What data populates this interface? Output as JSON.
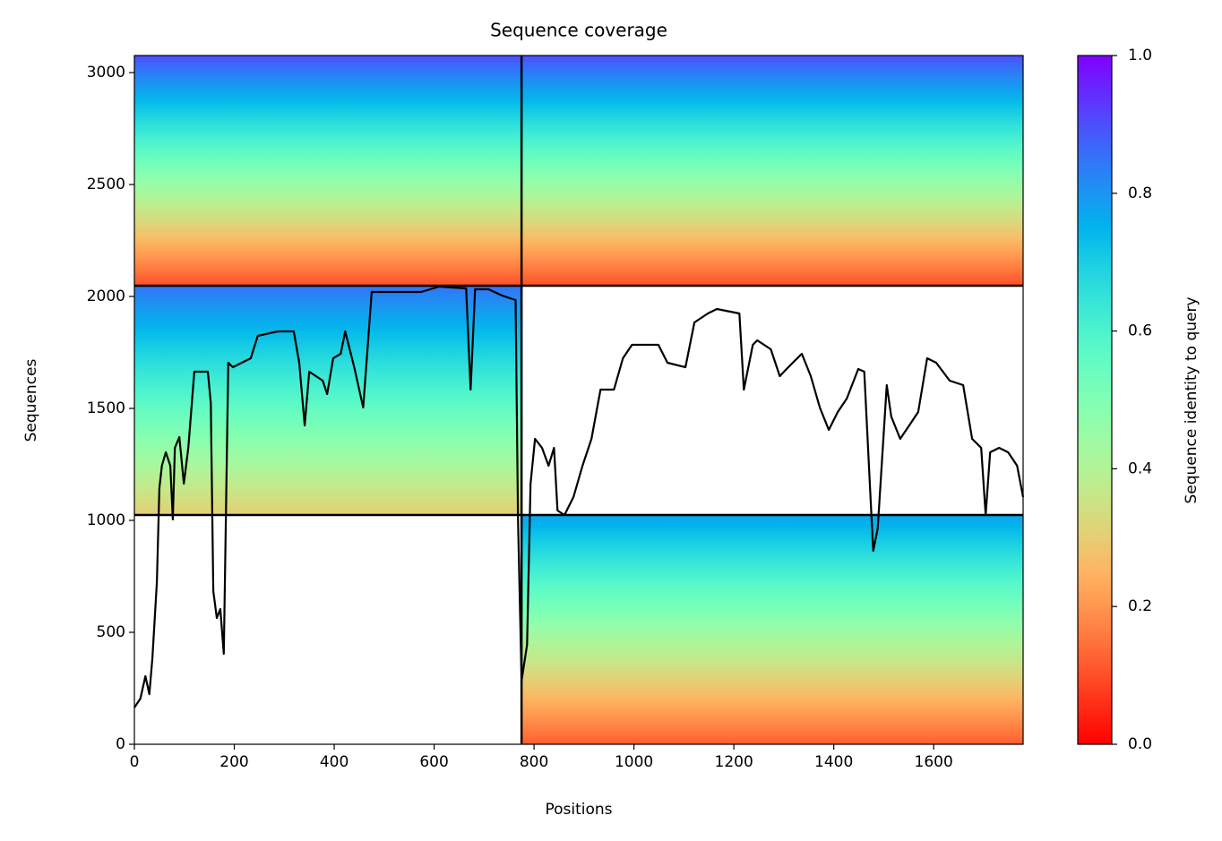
{
  "chart_data": {
    "type": "coverage",
    "title": "Sequence coverage",
    "xlabel": "Positions",
    "ylabel": "Sequences",
    "colorbar_label": "Sequence identity to query",
    "colormap": "rainbow_r",
    "xlim": [
      0,
      1779
    ],
    "ylim": [
      0,
      3076
    ],
    "xticks": [
      0,
      200,
      400,
      600,
      800,
      1000,
      1200,
      1400,
      1600
    ],
    "yticks": [
      0,
      500,
      1000,
      1500,
      2000,
      2500,
      3000
    ],
    "clim": [
      0,
      1
    ],
    "cticks": [
      {
        "value": 0,
        "label": "0.0"
      },
      {
        "value": 0.2,
        "label": "0.2"
      },
      {
        "value": 0.4,
        "label": "0.4"
      },
      {
        "value": 0.6,
        "label": "0.6"
      },
      {
        "value": 0.8,
        "label": "0.8"
      },
      {
        "value": 1,
        "label": "1.0"
      }
    ],
    "blocks": [
      {
        "x": [
          0,
          1779
        ],
        "y": [
          2048,
          3076
        ],
        "identity": [
          0.1,
          0.9
        ]
      },
      {
        "x": [
          0,
          775
        ],
        "y": [
          1024,
          2048
        ],
        "identity": [
          0.3,
          0.85
        ]
      },
      {
        "x": [
          775,
          1779
        ],
        "y": [
          0,
          1024
        ],
        "identity": [
          0.12,
          0.78
        ]
      }
    ],
    "chain_breaks_x": [
      775
    ],
    "chain_breaks_y": [
      1024,
      2048
    ],
    "coverage": {
      "color": "#000000",
      "x": [
        0,
        12,
        22,
        30,
        36,
        45,
        50,
        55,
        63,
        72,
        77,
        81,
        90,
        99,
        108,
        120,
        147,
        153,
        158,
        165,
        172,
        179,
        188,
        197,
        233,
        247,
        287,
        319,
        330,
        341,
        350,
        377,
        386,
        398,
        413,
        422,
        440,
        458,
        475,
        574,
        610,
        664,
        673,
        682,
        709,
        736,
        763,
        768,
        775,
        786,
        793,
        802,
        816,
        829,
        840,
        847,
        861,
        879,
        897,
        915,
        933,
        960,
        978,
        996,
        1049,
        1067,
        1103,
        1121,
        1148,
        1166,
        1211,
        1220,
        1238,
        1247,
        1274,
        1292,
        1309,
        1336,
        1354,
        1372,
        1390,
        1408,
        1426,
        1449,
        1461,
        1474,
        1479,
        1488,
        1506,
        1515,
        1533,
        1551,
        1569,
        1587,
        1605,
        1632,
        1659,
        1677,
        1695,
        1704,
        1713,
        1731,
        1749,
        1767,
        1779
      ],
      "values": [
        164,
        204,
        304,
        224,
        384,
        724,
        1144,
        1244,
        1304,
        1244,
        1004,
        1324,
        1372,
        1164,
        1324,
        1664,
        1664,
        1524,
        684,
        564,
        604,
        404,
        1704,
        1684,
        1724,
        1824,
        1844,
        1844,
        1704,
        1424,
        1664,
        1624,
        1564,
        1724,
        1744,
        1844,
        1684,
        1504,
        2020,
        2020,
        2044,
        2036,
        1584,
        2032,
        2032,
        2004,
        1984,
        1004,
        284,
        444,
        1164,
        1364,
        1324,
        1244,
        1324,
        1044,
        1024,
        1104,
        1244,
        1364,
        1584,
        1584,
        1724,
        1784,
        1784,
        1704,
        1684,
        1884,
        1924,
        1944,
        1924,
        1584,
        1784,
        1804,
        1764,
        1644,
        1684,
        1744,
        1644,
        1504,
        1404,
        1484,
        1544,
        1676,
        1664,
        1084,
        864,
        964,
        1604,
        1464,
        1364,
        1424,
        1484,
        1724,
        1704,
        1624,
        1604,
        1364,
        1324,
        1024,
        1304,
        1324,
        1304,
        1244,
        1104
      ]
    }
  }
}
